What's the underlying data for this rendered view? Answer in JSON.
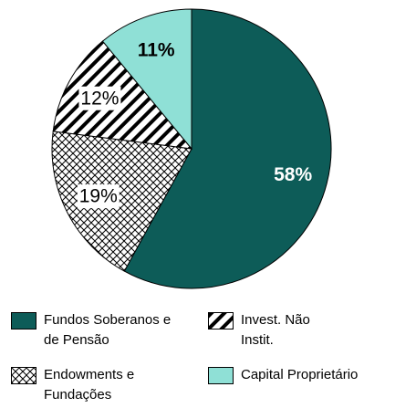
{
  "chart_data": {
    "type": "pie",
    "categories": [
      "Fundos Soberanos e de Pensão",
      "Endowments e Fundações",
      "Invest. Não Instit.",
      "Capital Proprietário"
    ],
    "values": [
      58,
      19,
      12,
      11
    ],
    "value_labels": [
      "58%",
      "19%",
      "12%",
      "11%"
    ],
    "colors": [
      "#0d5c58",
      "#000000",
      "#000000",
      "#8fe0d6"
    ],
    "patterns": [
      "solid",
      "crosshatch",
      "diagonal",
      "solid"
    ],
    "legend_order": [
      0,
      2,
      1,
      3
    ]
  }
}
